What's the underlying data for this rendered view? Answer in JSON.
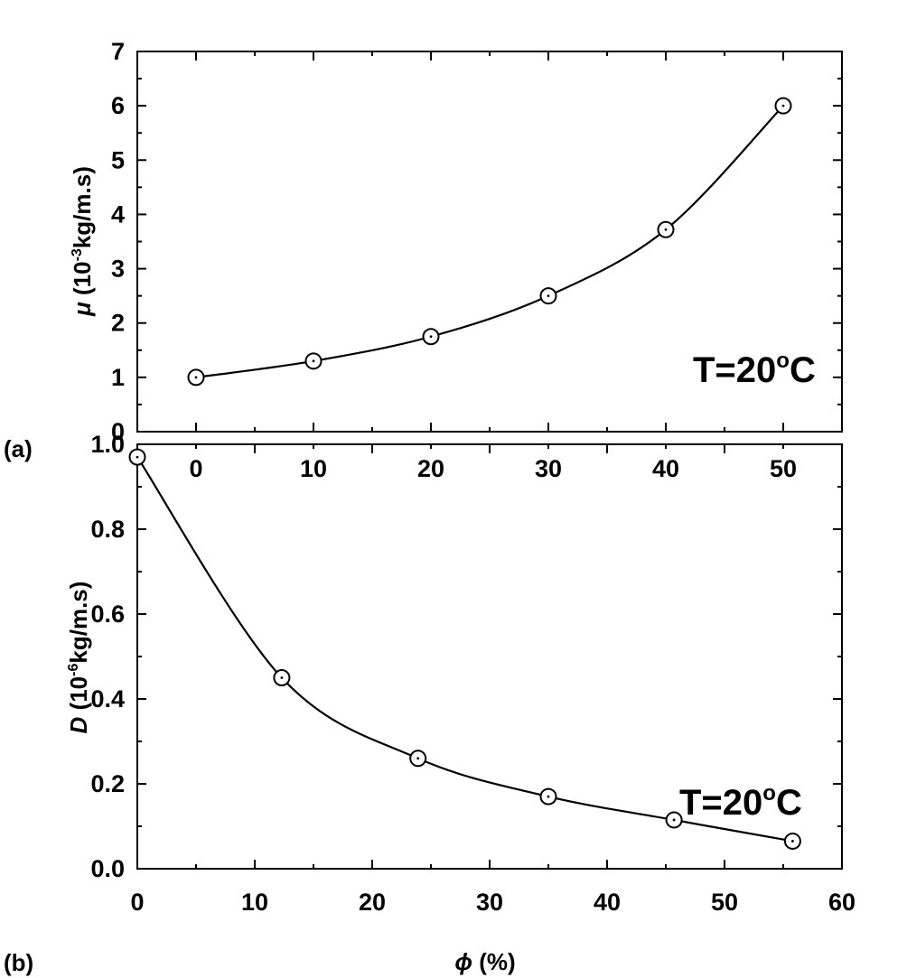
{
  "chart_data": [
    {
      "type": "line",
      "panel_label": "(a)",
      "annotation": {
        "text": "T=20",
        "degree": "o",
        "unit": "C"
      },
      "ylabel": {
        "symbol": "μ",
        "prefix": " (10",
        "exp": "-3",
        "suffix": "kg/m.s)"
      },
      "xlim": [
        -5,
        55
      ],
      "ylim": [
        0,
        7
      ],
      "xticks": [
        0,
        10,
        20,
        30,
        40,
        50
      ],
      "yticks": [
        0,
        1,
        2,
        3,
        4,
        5,
        6,
        7
      ],
      "xtick_labels": [
        "0",
        "10",
        "20",
        "30",
        "40",
        "50"
      ],
      "ytick_labels": [
        "0",
        "1",
        "2",
        "3",
        "4",
        "5",
        "6",
        "7"
      ],
      "series": [
        {
          "x": [
            0,
            10,
            20,
            30,
            40,
            50
          ],
          "y": [
            1.0,
            1.3,
            1.75,
            2.5,
            3.72,
            6.0
          ],
          "marker": "circle-dot"
        }
      ]
    },
    {
      "type": "line",
      "panel_label": "(b)",
      "annotation": {
        "text": "T=20",
        "degree": "o",
        "unit": "C"
      },
      "ylabel": {
        "symbol": "D",
        "prefix": " (10",
        "exp": "-6",
        "suffix": "kg/m.s)"
      },
      "xlabel": {
        "symbol": "ϕ",
        "suffix": " (%)"
      },
      "xlim": [
        0,
        60
      ],
      "ylim": [
        0,
        1.0
      ],
      "xticks": [
        0,
        10,
        20,
        30,
        40,
        50,
        60
      ],
      "yticks": [
        0,
        0.2,
        0.4,
        0.6,
        0.8,
        1.0
      ],
      "xtick_labels": [
        "0",
        "10",
        "20",
        "30",
        "40",
        "50",
        "60"
      ],
      "ytick_labels": [
        "0.0",
        "0.2",
        "0.4",
        "0.6",
        "0.8",
        "1.0"
      ],
      "series": [
        {
          "x": [
            0,
            12.3,
            23.9,
            35.0,
            45.7,
            55.8
          ],
          "y": [
            0.97,
            0.45,
            0.26,
            0.17,
            0.115,
            0.065
          ],
          "marker": "circle-dot"
        }
      ]
    }
  ]
}
